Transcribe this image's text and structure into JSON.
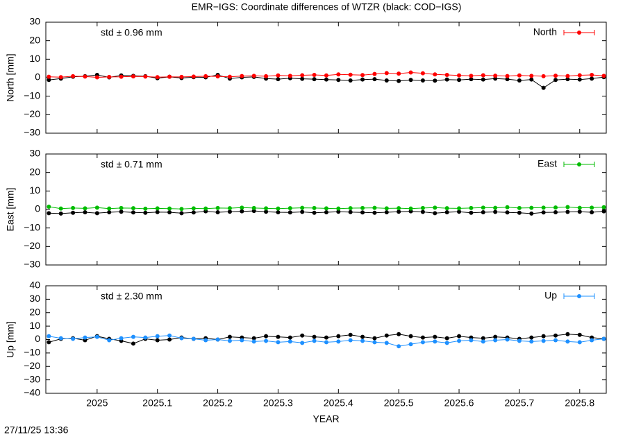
{
  "chart_data": [
    {
      "type": "line",
      "title": "EMR−IGS: Coordinate differences of WTZR (black: COD−IGS)",
      "ylabel": "North [mm]",
      "annotation": "std ± 0.96 mm",
      "legend": "upper right",
      "grid": false,
      "xlim": [
        2024.915,
        2025.844
      ],
      "ylim": [
        -30,
        30
      ],
      "yticks": [
        {
          "value": -30,
          "label": "−30"
        },
        {
          "value": -20,
          "label": "−20"
        },
        {
          "value": -10,
          "label": "−10"
        },
        0,
        10,
        20,
        30
      ],
      "x": [
        2024.92,
        2024.94,
        2024.96,
        2024.98,
        2025.0,
        2025.02,
        2025.04,
        2025.06,
        2025.08,
        2025.1,
        2025.12,
        2025.14,
        2025.16,
        2025.18,
        2025.2,
        2025.22,
        2025.24,
        2025.26,
        2025.28,
        2025.3,
        2025.32,
        2025.34,
        2025.36,
        2025.38,
        2025.4,
        2025.42,
        2025.44,
        2025.46,
        2025.48,
        2025.5,
        2025.52,
        2025.54,
        2025.56,
        2025.58,
        2025.6,
        2025.62,
        2025.64,
        2025.66,
        2025.68,
        2025.7,
        2025.72,
        2025.74,
        2025.76,
        2025.78,
        2025.8,
        2025.82,
        2025.84
      ],
      "series": [
        {
          "color": "#000000",
          "values": [
            -1.2,
            -0.5,
            0.5,
            0.8,
            1.5,
            0.2,
            1.2,
            1.0,
            0.8,
            -0.3,
            0.5,
            -0.2,
            0.3,
            0.2,
            1.5,
            -0.5,
            0.2,
            0.4,
            -0.5,
            -0.8,
            -0.3,
            -0.6,
            -0.8,
            -1.0,
            -1.2,
            -1.5,
            -1.0,
            -0.8,
            -1.5,
            -1.8,
            -1.2,
            -1.5,
            -1.6,
            -1.0,
            -1.2,
            -0.8,
            -1.0,
            -0.5,
            -0.8,
            -1.5,
            -1.0,
            -5.5,
            -1.2,
            -0.8,
            -1.0,
            -0.5,
            0.3
          ]
        },
        {
          "name": "North",
          "color": "#ff0000",
          "values": [
            0.5,
            0.3,
            0.8,
            0.6,
            0.2,
            0.4,
            0.5,
            0.7,
            0.6,
            0.3,
            0.5,
            0.4,
            0.6,
            0.8,
            0.7,
            0.5,
            0.9,
            1.0,
            0.8,
            1.2,
            1.0,
            1.3,
            1.5,
            1.2,
            1.8,
            1.6,
            1.4,
            2.0,
            2.5,
            2.2,
            2.8,
            2.4,
            1.8,
            1.5,
            1.2,
            1.0,
            1.3,
            1.1,
            0.9,
            1.2,
            1.0,
            0.8,
            1.1,
            0.9,
            1.3,
            1.5,
            1.0
          ]
        }
      ]
    },
    {
      "type": "line",
      "ylabel": "East [mm]",
      "annotation": "std ± 0.71 mm",
      "legend": "upper right",
      "grid": false,
      "xlim": [
        2024.915,
        2025.844
      ],
      "ylim": [
        -30,
        30
      ],
      "yticks": [
        {
          "value": -30,
          "label": "−30"
        },
        {
          "value": -20,
          "label": "−20"
        },
        {
          "value": -10,
          "label": "−10"
        },
        0,
        10,
        20,
        30
      ],
      "x": [
        2024.92,
        2024.94,
        2024.96,
        2024.98,
        2025.0,
        2025.02,
        2025.04,
        2025.06,
        2025.08,
        2025.1,
        2025.12,
        2025.14,
        2025.16,
        2025.18,
        2025.2,
        2025.22,
        2025.24,
        2025.26,
        2025.28,
        2025.3,
        2025.32,
        2025.34,
        2025.36,
        2025.38,
        2025.4,
        2025.42,
        2025.44,
        2025.46,
        2025.48,
        2025.5,
        2025.52,
        2025.54,
        2025.56,
        2025.58,
        2025.6,
        2025.62,
        2025.64,
        2025.66,
        2025.68,
        2025.7,
        2025.72,
        2025.74,
        2025.76,
        2025.78,
        2025.8,
        2025.82,
        2025.84
      ],
      "series": [
        {
          "color": "#000000",
          "values": [
            -2.0,
            -2.2,
            -1.8,
            -1.5,
            -2.0,
            -1.5,
            -1.2,
            -1.6,
            -1.8,
            -1.4,
            -1.5,
            -2.0,
            -1.6,
            -1.0,
            -1.5,
            -1.2,
            -1.0,
            -0.8,
            -1.2,
            -1.5,
            -1.6,
            -1.3,
            -1.8,
            -1.5,
            -1.2,
            -1.4,
            -1.6,
            -1.8,
            -1.5,
            -1.2,
            -1.0,
            -1.3,
            -2.0,
            -1.5,
            -1.2,
            -1.8,
            -1.5,
            -1.3,
            -1.6,
            -1.8,
            -2.2,
            -1.6,
            -1.5,
            -1.3,
            -1.2,
            -1.5,
            -1.0
          ]
        },
        {
          "name": "East",
          "color": "#00bb00",
          "values": [
            1.5,
            0.5,
            0.8,
            0.6,
            1.0,
            0.5,
            0.8,
            0.7,
            0.4,
            0.6,
            0.5,
            0.3,
            0.6,
            0.5,
            0.8,
            0.7,
            1.0,
            0.8,
            0.6,
            0.5,
            0.7,
            0.9,
            0.8,
            0.6,
            0.5,
            0.7,
            0.8,
            0.9,
            0.6,
            0.7,
            0.5,
            0.8,
            1.0,
            0.7,
            0.6,
            0.8,
            1.0,
            0.9,
            1.2,
            0.8,
            0.9,
            1.0,
            1.1,
            1.3,
            0.9,
            1.0,
            1.2
          ]
        }
      ]
    },
    {
      "type": "line",
      "ylabel": "Up [mm]",
      "xlabel": "YEAR",
      "annotation": "std ± 2.30 mm",
      "legend": "upper right",
      "grid": false,
      "xlim": [
        2024.915,
        2025.844
      ],
      "ylim": [
        -40,
        40
      ],
      "xticks": [
        2025,
        2025.1,
        2025.2,
        2025.3,
        2025.4,
        2025.5,
        2025.6,
        2025.7,
        2025.8
      ],
      "yticks": [
        {
          "value": -40,
          "label": "−40"
        },
        {
          "value": -30,
          "label": "−30"
        },
        {
          "value": -20,
          "label": "−20"
        },
        {
          "value": -10,
          "label": "−10"
        },
        0,
        10,
        20,
        30,
        40
      ],
      "x": [
        2024.92,
        2024.94,
        2024.96,
        2024.98,
        2025.0,
        2025.02,
        2025.04,
        2025.06,
        2025.08,
        2025.1,
        2025.12,
        2025.14,
        2025.16,
        2025.18,
        2025.2,
        2025.22,
        2025.24,
        2025.26,
        2025.28,
        2025.3,
        2025.32,
        2025.34,
        2025.36,
        2025.38,
        2025.4,
        2025.42,
        2025.44,
        2025.46,
        2025.48,
        2025.5,
        2025.52,
        2025.54,
        2025.56,
        2025.58,
        2025.6,
        2025.62,
        2025.64,
        2025.66,
        2025.68,
        2025.7,
        2025.72,
        2025.74,
        2025.76,
        2025.78,
        2025.8,
        2025.82,
        2025.84
      ],
      "series": [
        {
          "color": "#000000",
          "values": [
            -2.0,
            0.5,
            1.0,
            -0.5,
            2.5,
            0.5,
            -1.0,
            -3.0,
            0.5,
            -0.5,
            0.0,
            1.5,
            0.5,
            1.0,
            0.0,
            2.0,
            1.5,
            1.0,
            2.5,
            2.0,
            1.5,
            3.0,
            2.0,
            1.5,
            2.5,
            3.5,
            2.0,
            1.0,
            3.0,
            4.0,
            2.5,
            1.5,
            2.0,
            1.0,
            2.5,
            1.5,
            1.0,
            2.0,
            1.5,
            0.5,
            1.5,
            2.5,
            3.0,
            4.0,
            3.5,
            1.5,
            0.5
          ]
        },
        {
          "name": "Up",
          "color": "#1e90ff",
          "values": [
            2.5,
            1.0,
            0.5,
            1.5,
            2.0,
            -0.5,
            1.0,
            2.0,
            1.5,
            2.5,
            3.0,
            1.0,
            0.5,
            -0.5,
            0.0,
            -1.0,
            -0.5,
            -1.5,
            -1.0,
            -2.0,
            -1.5,
            -2.5,
            -1.0,
            -2.0,
            -1.5,
            -0.5,
            -1.0,
            -2.0,
            -2.5,
            -5.0,
            -3.5,
            -2.0,
            -1.5,
            -2.5,
            -1.0,
            -0.5,
            -1.5,
            -0.5,
            0.0,
            -1.0,
            -1.5,
            -1.0,
            -0.5,
            -1.5,
            -2.0,
            -0.5,
            0.5
          ]
        }
      ]
    }
  ],
  "footer": "27/11/25 13:36"
}
